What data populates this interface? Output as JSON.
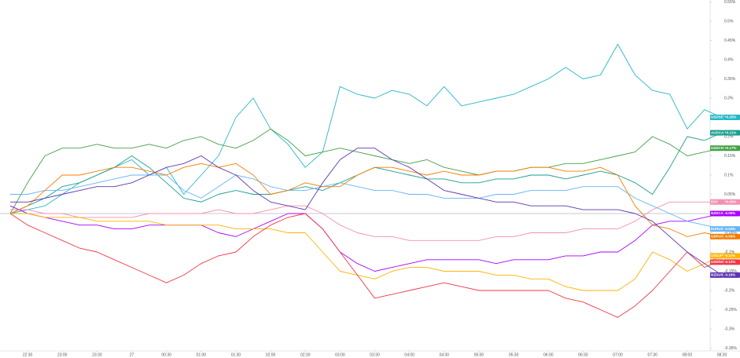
{
  "chart_data": {
    "type": "line",
    "categories": [
      null,
      "22:30",
      null,
      "23:00",
      null,
      "23:30",
      null,
      "27",
      null,
      "00:30",
      null,
      "01:00",
      null,
      "01:30",
      null,
      "02:00",
      null,
      "02:30",
      null,
      "03:00",
      null,
      "03:30",
      null,
      "04:00",
      null,
      "04:30",
      null,
      "05:00",
      null,
      "05:30",
      null,
      "06:00",
      null,
      "06:30",
      null,
      "07:00",
      null,
      "07:30",
      null,
      "08:00",
      null,
      "08:30"
    ],
    "ylim": [
      -0.35,
      0.55
    ],
    "yticks": [
      {
        "value": 0.55,
        "label": "0.55%"
      },
      {
        "value": 0.5,
        "label": "0.5%"
      },
      {
        "value": 0.45,
        "label": "0.45%"
      },
      {
        "value": 0.4,
        "label": "0.4%"
      },
      {
        "value": 0.35,
        "label": "0.35%"
      },
      {
        "value": 0.3,
        "label": "0.3%"
      },
      {
        "value": 0.25,
        "label": "0.25%"
      },
      {
        "value": 0.2,
        "label": "0.2%"
      },
      {
        "value": 0.15,
        "label": "0.15%"
      },
      {
        "value": 0.1,
        "label": "0.1%"
      },
      {
        "value": 0.05,
        "label": "0.05%"
      },
      {
        "value": -0.05,
        "label": "-0.05%"
      },
      {
        "value": -0.1,
        "label": "-0.1%"
      },
      {
        "value": -0.15,
        "label": "-0.15%"
      },
      {
        "value": -0.2,
        "label": "-0.2%"
      },
      {
        "value": -0.25,
        "label": "-0.25%"
      },
      {
        "value": -0.3,
        "label": "-0.3%"
      },
      {
        "value": -0.35,
        "label": "-0.35%"
      }
    ],
    "zero_line": 0,
    "series": [
      {
        "name": "USDSEK",
        "color": "#26b6c6",
        "last_label": "+0.25%",
        "values": [
          0,
          0.01,
          0.02,
          0.05,
          0.08,
          0.1,
          0.12,
          0.14,
          0.1,
          0.12,
          0.05,
          0.1,
          0.15,
          0.25,
          0.3,
          0.22,
          0.18,
          0.12,
          0.16,
          0.33,
          0.31,
          0.3,
          0.32,
          0.31,
          0.28,
          0.33,
          0.28,
          0.29,
          0.3,
          0.31,
          0.33,
          0.35,
          0.38,
          0.35,
          0.36,
          0.44,
          0.36,
          0.32,
          0.31,
          0.22,
          0.27,
          0.25
        ]
      },
      {
        "name": "AUDCAD",
        "color": "#1a9e8f",
        "last_label": "+0.21%",
        "values": [
          0,
          0.02,
          0.04,
          0.07,
          0.08,
          0.1,
          0.12,
          0.15,
          0.12,
          0.08,
          0.04,
          0.03,
          0.05,
          0.06,
          0.05,
          0.05,
          0.06,
          0.07,
          0.06,
          0.08,
          0.1,
          0.12,
          0.11,
          0.1,
          0.09,
          0.09,
          0.08,
          0.08,
          0.09,
          0.09,
          0.1,
          0.1,
          0.09,
          0.1,
          0.11,
          0.1,
          0.08,
          0.05,
          0.12,
          0.2,
          0.19,
          0.21
        ]
      },
      {
        "name": "USDCHF",
        "color": "#43a047",
        "last_label": "+0.17%",
        "values": [
          0,
          0.08,
          0.15,
          0.17,
          0.17,
          0.18,
          0.17,
          0.17,
          0.18,
          0.17,
          0.19,
          0.2,
          0.18,
          0.17,
          0.19,
          0.22,
          0.19,
          0.15,
          0.16,
          0.17,
          0.16,
          0.15,
          0.14,
          0.13,
          0.14,
          0.12,
          0.11,
          0.1,
          0.11,
          0.11,
          0.12,
          0.12,
          0.13,
          0.13,
          0.14,
          0.15,
          0.16,
          0.2,
          0.18,
          0.15,
          0.16,
          0.17
        ]
      },
      {
        "name": "DXY",
        "color": "#f48fb1",
        "last_label": "+0.03%",
        "values": [
          0.01,
          0.01,
          0,
          0,
          -0.01,
          -0.01,
          -0.01,
          -0.01,
          0,
          0,
          0,
          0,
          0.01,
          0,
          0,
          0.01,
          0.02,
          0.02,
          0,
          -0.03,
          -0.05,
          -0.06,
          -0.06,
          -0.07,
          -0.07,
          -0.07,
          -0.07,
          -0.07,
          -0.06,
          -0.06,
          -0.05,
          -0.05,
          -0.05,
          -0.04,
          -0.04,
          -0.04,
          -0.02,
          0.01,
          0.03,
          0.03,
          0.03,
          0.03
        ]
      },
      {
        "name": "NZDCAD",
        "color": "#aa00ff",
        "last_label": "-0.00%",
        "values": [
          0.02,
          0,
          -0.01,
          -0.02,
          -0.03,
          -0.03,
          -0.04,
          -0.04,
          -0.03,
          -0.03,
          -0.03,
          -0.03,
          -0.05,
          -0.06,
          -0.04,
          -0.02,
          0,
          0,
          -0.04,
          -0.1,
          -0.13,
          -0.15,
          -0.14,
          -0.13,
          -0.12,
          -0.12,
          -0.12,
          -0.12,
          -0.13,
          -0.12,
          -0.12,
          -0.12,
          -0.11,
          -0.11,
          -0.1,
          -0.1,
          -0.07,
          -0.03,
          -0.02,
          -0.02,
          -0.01,
          0
        ]
      },
      {
        "name": "EURUSD",
        "color": "#64b5f6",
        "last_label": "-0.04%",
        "values": [
          0.05,
          0.05,
          0.06,
          0.06,
          0.07,
          0.08,
          0.09,
          0.1,
          0.1,
          0.1,
          0.06,
          0.04,
          0.07,
          0.1,
          0.09,
          0.07,
          0.06,
          0.06,
          0.07,
          0.08,
          0.07,
          0.06,
          0.06,
          0.05,
          0.05,
          0.04,
          0.04,
          0.04,
          0.05,
          0.05,
          0.06,
          0.06,
          0.06,
          0.07,
          0.07,
          0.07,
          0.04,
          0.02,
          0,
          -0.02,
          -0.03,
          -0.04
        ]
      },
      {
        "name": "GBPUSD",
        "color": "#f57c00",
        "last_label": "-0.06%",
        "values": [
          0,
          0.02,
          0.06,
          0.1,
          0.1,
          0.11,
          0.12,
          0.12,
          0.11,
          0.1,
          0.12,
          0.13,
          0.12,
          0.13,
          0.1,
          0.05,
          0.06,
          0.08,
          0.07,
          0.07,
          0.1,
          0.12,
          0.12,
          0.11,
          0.1,
          0.11,
          0.1,
          0.1,
          0.11,
          0.11,
          0.12,
          0.12,
          0.11,
          0.11,
          0.12,
          0.1,
          0.02,
          -0.03,
          -0.04,
          -0.06,
          -0.05,
          -0.06
        ]
      },
      {
        "name": "USDJPY",
        "color": "#ffb300",
        "last_label": "-0.11%",
        "values": [
          0,
          0,
          -0.01,
          -0.01,
          -0.01,
          -0.02,
          -0.02,
          -0.02,
          -0.02,
          -0.03,
          -0.03,
          -0.03,
          -0.03,
          -0.04,
          -0.04,
          -0.04,
          -0.05,
          -0.05,
          -0.1,
          -0.15,
          -0.16,
          -0.17,
          -0.15,
          -0.14,
          -0.14,
          -0.15,
          -0.15,
          -0.15,
          -0.16,
          -0.16,
          -0.17,
          -0.17,
          -0.19,
          -0.2,
          -0.2,
          -0.2,
          -0.17,
          -0.1,
          -0.12,
          -0.15,
          -0.13,
          -0.11
        ]
      },
      {
        "name": "USDNOK",
        "color": "#f23645",
        "last_label": "-0.12%",
        "values": [
          0,
          -0.03,
          -0.05,
          -0.07,
          -0.09,
          -0.1,
          -0.12,
          -0.14,
          -0.16,
          -0.18,
          -0.16,
          -0.13,
          -0.11,
          -0.1,
          -0.06,
          -0.03,
          -0.01,
          0,
          -0.04,
          -0.1,
          -0.16,
          -0.22,
          -0.21,
          -0.2,
          -0.19,
          -0.18,
          -0.19,
          -0.2,
          -0.2,
          -0.2,
          -0.2,
          -0.2,
          -0.22,
          -0.23,
          -0.25,
          -0.27,
          -0.24,
          -0.2,
          -0.15,
          -0.1,
          -0.14,
          -0.12
        ]
      },
      {
        "name": "NZDUSD",
        "color": "#5e35b1",
        "last_label": "-0.16%",
        "values": [
          0.03,
          0.03,
          0.04,
          0.05,
          0.06,
          0.07,
          0.07,
          0.08,
          0.1,
          0.12,
          0.13,
          0.15,
          0.12,
          0.1,
          0.06,
          0.03,
          0.02,
          0.01,
          0.08,
          0.14,
          0.17,
          0.17,
          0.14,
          0.12,
          0.09,
          0.06,
          0.05,
          0.04,
          0.03,
          0.03,
          0.02,
          0.02,
          0.02,
          0.01,
          0.01,
          0.01,
          0,
          -0.02,
          -0.06,
          -0.1,
          -0.13,
          -0.16
        ]
      }
    ]
  }
}
